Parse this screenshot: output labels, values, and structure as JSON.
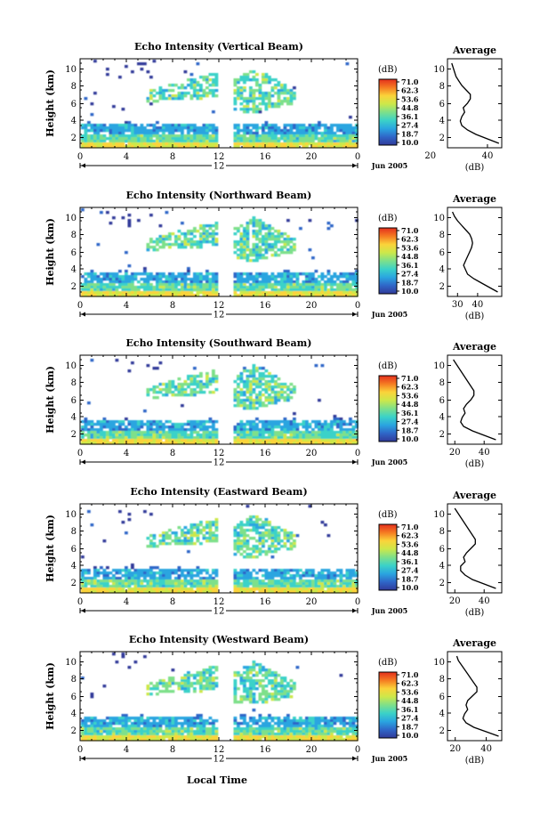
{
  "figure": {
    "xlabel": "Local Time",
    "date_label": "Jun 2005",
    "x_ticks": [
      "0",
      "4",
      "8",
      "12",
      "16",
      "20",
      "0"
    ],
    "x_axis_range_note": "12",
    "y_label": "Height (km)",
    "y_ticks": [
      "2",
      "4",
      "6",
      "8",
      "10"
    ],
    "colorbar_unit": "(dB)",
    "colorbar_ticks": [
      "71.0",
      "62.3",
      "53.6",
      "44.8",
      "36.1",
      "27.4",
      "18.7",
      "10.0"
    ],
    "colorbar_colors": [
      "#e42f1d",
      "#f57b22",
      "#fbd33a",
      "#cde84a",
      "#7ee08a",
      "#3bd2c8",
      "#2aa5e0",
      "#2f66c8",
      "#303a9a"
    ],
    "avg_title": "Average",
    "avg_xlabel": "(dB)"
  },
  "chart_data": [
    {
      "type": "heatmap",
      "title": "Echo Intensity (Vertical Beam)",
      "xlabel": "Local Time",
      "ylabel": "Height (km)",
      "xlim": [
        0,
        24
      ],
      "ylim": [
        0.5,
        10.5
      ],
      "colorbar": {
        "unit": "dB",
        "range": [
          10.0,
          71.0
        ]
      },
      "data_gap_hours": [
        12.3,
        13.0
      ],
      "profile": {
        "title": "Average",
        "xlabel": "(dB)",
        "xlim": [
          26,
          45
        ],
        "xticks": [
          "20",
          "40"
        ],
        "heights": [
          1.0,
          1.5,
          2.0,
          2.5,
          3.0,
          3.5,
          4.0,
          4.5,
          5.0,
          5.5,
          6.0,
          6.5,
          7.0,
          7.5,
          8.0,
          8.5,
          9.0,
          9.5,
          10.0
        ],
        "values": [
          44,
          40,
          36,
          33,
          31,
          30.5,
          31,
          32,
          31.5,
          33,
          34,
          34,
          32.5,
          31,
          30,
          29,
          28.5,
          28,
          27.5
        ]
      }
    },
    {
      "type": "heatmap",
      "title": "Echo Intensity (Northward Beam)",
      "xlabel": "Local Time",
      "ylabel": "Height (km)",
      "xlim": [
        0,
        24
      ],
      "ylim": [
        0.5,
        10.5
      ],
      "colorbar": {
        "unit": "dB",
        "range": [
          10.0,
          71.0
        ]
      },
      "data_gap_hours": [
        12.3,
        13.0
      ],
      "profile": {
        "title": "Average",
        "xlabel": "(dB)",
        "xlim": [
          25,
          52
        ],
        "xticks": [
          "30",
          "40"
        ],
        "heights": [
          1.0,
          1.5,
          2.0,
          2.5,
          3.0,
          3.5,
          4.0,
          4.5,
          5.0,
          5.5,
          6.0,
          6.5,
          7.0,
          7.5,
          8.0,
          8.5,
          9.0,
          9.5,
          10.0
        ],
        "values": [
          50,
          46,
          42,
          38,
          35,
          34,
          33,
          34,
          35,
          36,
          37,
          37.5,
          37,
          36,
          34,
          32,
          30,
          28.5,
          27.5
        ]
      }
    },
    {
      "type": "heatmap",
      "title": "Echo Intensity (Southward Beam)",
      "xlabel": "Local Time",
      "ylabel": "Height (km)",
      "xlim": [
        0,
        24
      ],
      "ylim": [
        0.5,
        10.5
      ],
      "colorbar": {
        "unit": "dB",
        "range": [
          10.0,
          71.0
        ]
      },
      "data_gap_hours": [
        12.3,
        13.0
      ],
      "profile": {
        "title": "Average",
        "xlabel": "(dB)",
        "xlim": [
          15,
          52
        ],
        "xticks": [
          "20",
          "40"
        ],
        "heights": [
          1.0,
          1.5,
          2.0,
          2.5,
          3.0,
          3.5,
          4.0,
          4.5,
          5.0,
          5.5,
          6.0,
          6.5,
          7.0,
          7.5,
          8.0,
          8.5,
          9.0,
          9.5,
          10.0
        ],
        "values": [
          48,
          40,
          32,
          26,
          24,
          25,
          27,
          26,
          28,
          31,
          33,
          33,
          31,
          29,
          27,
          25,
          23,
          21,
          19
        ]
      }
    },
    {
      "type": "heatmap",
      "title": "Echo Intensity (Eastward Beam)",
      "xlabel": "Local Time",
      "ylabel": "Height (km)",
      "xlim": [
        0,
        24
      ],
      "ylim": [
        0.5,
        10.5
      ],
      "colorbar": {
        "unit": "dB",
        "range": [
          10.0,
          71.0
        ]
      },
      "data_gap_hours": [
        12.3,
        13.0
      ],
      "profile": {
        "title": "Average",
        "xlabel": "(dB)",
        "xlim": [
          15,
          52
        ],
        "xticks": [
          "20",
          "40"
        ],
        "heights": [
          1.0,
          1.5,
          2.0,
          2.5,
          3.0,
          3.5,
          4.0,
          4.5,
          5.0,
          5.5,
          6.0,
          6.5,
          7.0,
          7.5,
          8.0,
          8.5,
          9.0,
          9.5,
          10.0
        ],
        "values": [
          48,
          40,
          32,
          27,
          24,
          24,
          27,
          26,
          28,
          31,
          34,
          34,
          32,
          30,
          28,
          26,
          24,
          22,
          20
        ]
      }
    },
    {
      "type": "heatmap",
      "title": "Echo Intensity (Westward Beam)",
      "xlabel": "Local Time",
      "ylabel": "Height (km)",
      "xlim": [
        0,
        24
      ],
      "ylim": [
        0.5,
        10.5
      ],
      "colorbar": {
        "unit": "dB",
        "range": [
          10.0,
          71.0
        ]
      },
      "data_gap_hours": [
        12.3,
        13.0
      ],
      "profile": {
        "title": "Average",
        "xlabel": "(dB)",
        "xlim": [
          15,
          50
        ],
        "xticks": [
          "20",
          "40"
        ],
        "heights": [
          1.0,
          1.5,
          2.0,
          2.5,
          3.0,
          3.5,
          4.0,
          4.5,
          5.0,
          5.5,
          6.0,
          6.5,
          7.0,
          7.5,
          8.0,
          8.5,
          9.0,
          9.5,
          10.0
        ],
        "values": [
          48,
          40,
          32,
          27,
          25,
          26,
          28,
          27,
          28,
          31,
          34,
          34,
          32,
          30,
          28,
          26,
          24,
          22,
          21
        ]
      }
    }
  ]
}
